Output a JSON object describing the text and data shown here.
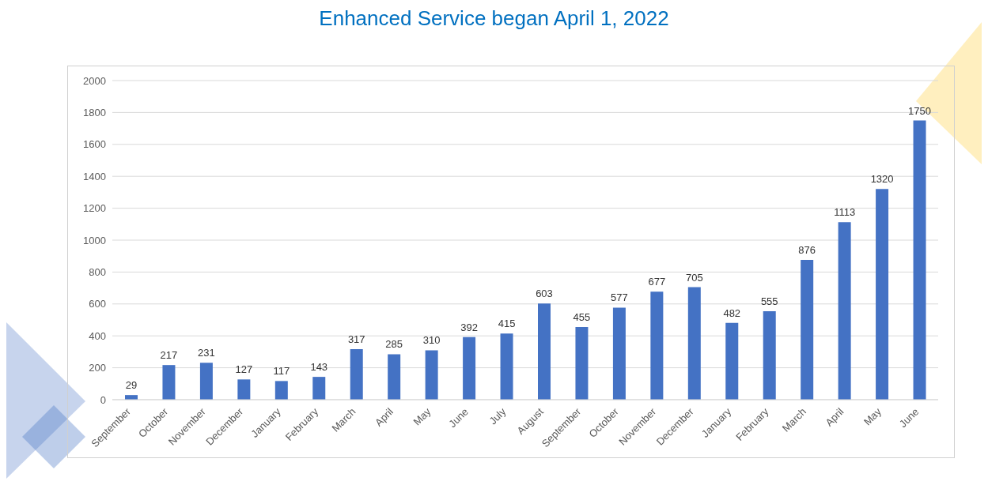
{
  "chart_data": {
    "type": "bar",
    "title": "Enhanced Service began April 1, 2022",
    "categories": [
      "September",
      "October",
      "November",
      "December",
      "January",
      "February",
      "March",
      "April",
      "May",
      "June",
      "July",
      "August",
      "September",
      "October",
      "November",
      "December",
      "January",
      "February",
      "March",
      "April",
      "May",
      "June"
    ],
    "values": [
      29,
      217,
      231,
      127,
      117,
      143,
      317,
      285,
      310,
      392,
      415,
      603,
      455,
      577,
      677,
      705,
      482,
      555,
      876,
      1113,
      1320,
      1750
    ],
    "color": "#4472c4",
    "ylim": [
      0,
      2000
    ],
    "yticks": [
      0,
      200,
      400,
      600,
      800,
      1000,
      1200,
      1400,
      1600,
      1800,
      2000
    ],
    "grid": "y",
    "data_labels": true
  }
}
